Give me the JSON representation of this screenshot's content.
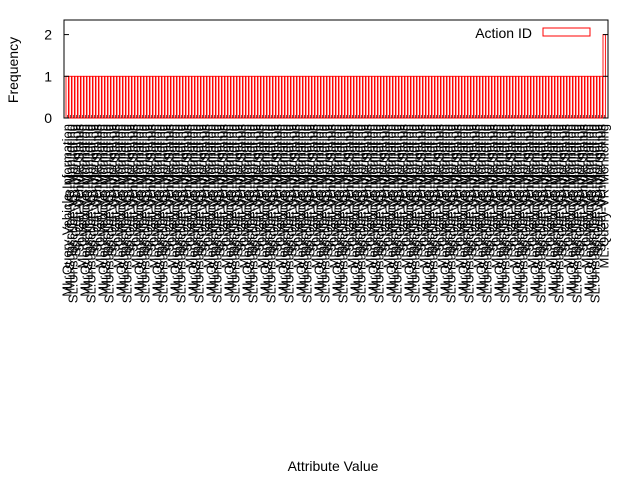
{
  "chart_data": {
    "type": "bar",
    "xlabel": "Attribute Value",
    "ylabel": "Frequency",
    "ylim": [
      0,
      2.35
    ],
    "yticks": [
      0,
      1,
      2
    ],
    "grid": false,
    "legend_position": "top-right",
    "series": [
      {
        "name": "Action ID",
        "color": "#ff0000"
      }
    ],
    "bar_count": 180,
    "values_pattern": "Every attribute value occurs once (frequency 1) except the last category, which occurs twice (frequency 2).",
    "visible_categories": [
      "ML:Query-Vehicle-Information",
      "ML:Subscribe-VR-Monitoring",
      "SL:Unsubscribe-VR-Monitoring",
      "SL:Get-VR-Information",
      "SL:Get-Vehicle-Status",
      "ML:Query-VR-Monitoring"
    ],
    "values": [
      1,
      1,
      1,
      1,
      1,
      2
    ]
  }
}
